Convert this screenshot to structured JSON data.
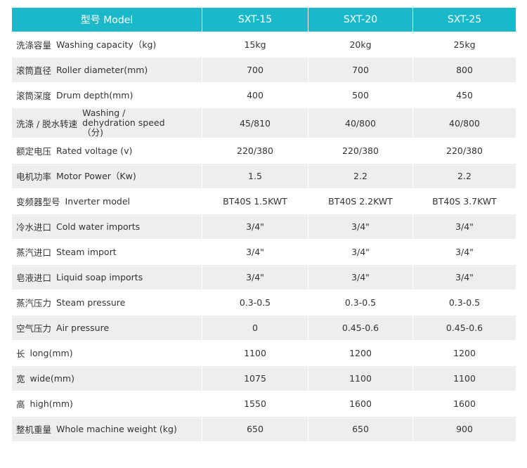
{
  "header": {
    "label": "型号 Model",
    "models": [
      "SXT-15",
      "SXT-20",
      "SXT-25"
    ]
  },
  "rows": [
    {
      "zh": "洗涤容量",
      "en": "Washing capacity（kg)",
      "values": [
        "15kg",
        "20kg",
        "25kg"
      ]
    },
    {
      "zh": "滚筒直径",
      "en": "Roller diameter(mm)",
      "values": [
        "700",
        "700",
        "800"
      ]
    },
    {
      "zh": "滚筒深度",
      "en": "Drum depth(mm)",
      "values": [
        "400",
        "500",
        "450"
      ]
    },
    {
      "zh": "洗涤 / 脱水转速",
      "en": "Washing / dehydration speed（分)",
      "values": [
        "45/810",
        "40/800",
        "40/800"
      ]
    },
    {
      "zh": "额定电压",
      "en": "Rated voltage (v)",
      "values": [
        "220/380",
        "220/380",
        "220/380"
      ]
    },
    {
      "zh": "电机功率",
      "en": "Motor Power（Kw)",
      "values": [
        "1.5",
        "2.2",
        "2.2"
      ]
    },
    {
      "zh": "变频器型号",
      "en": "Inverter model",
      "values": [
        "BT40S 1.5KWT",
        "BT40S 2.2KWT",
        "BT40S 3.7KWT"
      ]
    },
    {
      "zh": "冷水进口",
      "en": "Cold water imports",
      "values": [
        "3/4\"",
        "3/4\"",
        "3/4\""
      ]
    },
    {
      "zh": "蒸汽进口",
      "en": "Steam import",
      "values": [
        "3/4\"",
        "3/4\"",
        "3/4\""
      ]
    },
    {
      "zh": "皂液进口",
      "en": "Liquid soap imports",
      "values": [
        "3/4\"",
        "3/4\"",
        "3/4\""
      ]
    },
    {
      "zh": "蒸汽压力",
      "en": "Steam pressure",
      "values": [
        "0.3-0.5",
        "0.3-0.5",
        "0.3-0.5"
      ]
    },
    {
      "zh": "空气压力",
      "en": "Air pressure",
      "values": [
        "0",
        "0.45-0.6",
        "0.45-0.6"
      ]
    },
    {
      "zh": "长",
      "en": "long(mm)",
      "values": [
        "1100",
        "1200",
        "1200"
      ]
    },
    {
      "zh": "宽",
      "en": "wide(mm)",
      "values": [
        "1075",
        "1100",
        "1100"
      ]
    },
    {
      "zh": "高",
      "en": "high(mm)",
      "values": [
        "1550",
        "1600",
        "1600"
      ]
    },
    {
      "zh": "整机重量",
      "en": "Whole machine weight (kg)",
      "values": [
        "650",
        "650",
        "900"
      ]
    }
  ]
}
